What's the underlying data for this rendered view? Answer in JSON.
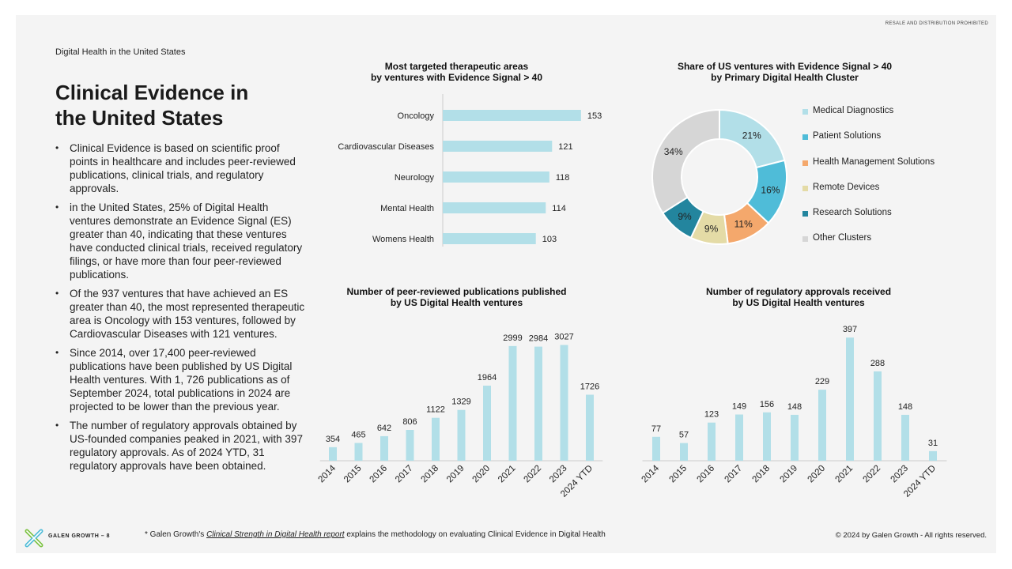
{
  "header": {
    "notice": "RESALE AND DISTRIBUTION PROHIBITED",
    "kicker": "Digital Health in the United States",
    "title_line1": "Clinical Evidence in",
    "title_line2": "the United States"
  },
  "bullets": [
    "Clinical Evidence is based on scientific proof points in healthcare and includes peer-reviewed publications, clinical trials, and regulatory approvals.",
    "in the United States, 25% of Digital Health ventures demonstrate an Evidence Signal (ES) greater than 40, indicating that these ventures have conducted clinical trials, received regulatory filings, or have more than four peer-reviewed publications.",
    "Of the 937 ventures that have achieved an ES greater than 40, the most represented therapeutic area is Oncology with 153 ventures, followed by Cardiovascular Diseases with 121 ventures.",
    "Since 2014, over 17,400 peer-reviewed publications have been published by US Digital Health ventures. With 1, 726 publications as of September 2024, total publications in 2024 are projected to be lower than the previous year.",
    "The number of regulatory approvals obtained by US-founded companies peaked in 2021, with 397 regulatory approvals. As of 2024 YTD, 31 regulatory approvals have been obtained."
  ],
  "colors": {
    "bar": "#b2dfe8",
    "slice_medical_diagnostics": "#b2dfe8",
    "slice_patient_solutions": "#4fbcd8",
    "slice_health_management": "#f4a86c",
    "slice_remote_devices": "#e4dba6",
    "slice_research_solutions": "#23859e",
    "slice_other_clusters": "#d6d6d6"
  },
  "chart_data": [
    {
      "type": "bar",
      "orientation": "horizontal",
      "title_line1": "Most targeted therapeutic areas",
      "title_line2": "by ventures with Evidence Signal > 40",
      "categories": [
        "Oncology",
        "Cardiovascular Diseases",
        "Neurology",
        "Mental Health",
        "Womens Health"
      ],
      "values": [
        153,
        121,
        118,
        114,
        103
      ],
      "xlim": [
        0,
        175
      ]
    },
    {
      "type": "pie",
      "title_line1": "Share of US ventures with Evidence Signal > 40",
      "title_line2": "by Primary Digital Health Cluster",
      "labels": [
        "Medical Diagnostics",
        "Patient Solutions",
        "Health Management Solutions",
        "Remote Devices",
        "Research Solutions",
        "Other Clusters"
      ],
      "values": [
        21,
        16,
        11,
        9,
        9,
        34
      ],
      "value_labels": [
        "21%",
        "16%",
        "11%",
        "9%",
        "9%",
        "34%"
      ],
      "legend": "right"
    },
    {
      "type": "bar",
      "title_line1": "Number of peer-reviewed publications published",
      "title_line2": "by US Digital Health ventures",
      "categories": [
        "2014",
        "2015",
        "2016",
        "2017",
        "2018",
        "2019",
        "2020",
        "2021",
        "2022",
        "2023",
        "2024 YTD"
      ],
      "values": [
        354,
        465,
        642,
        806,
        1122,
        1329,
        1964,
        2999,
        2984,
        3027,
        1726
      ],
      "ylim": [
        0,
        3100
      ]
    },
    {
      "type": "bar",
      "title_line1": "Number of regulatory approvals received",
      "title_line2": "by US Digital Health ventures",
      "categories": [
        "2014",
        "2015",
        "2016",
        "2017",
        "2018",
        "2019",
        "2020",
        "2021",
        "2022",
        "2023",
        "2024 YTD"
      ],
      "values": [
        77,
        57,
        123,
        149,
        156,
        148,
        229,
        397,
        288,
        148,
        31
      ],
      "ylim": [
        0,
        400
      ]
    }
  ],
  "footer": {
    "brand": "GALEN GROWTH – 8",
    "footnote_prefix": "* Galen Growth's ",
    "footnote_link": "Clinical Strength in Digital Health report",
    "footnote_suffix": " explains the methodology on evaluating Clinical Evidence in Digital Health",
    "copyright": "© 2024 by Galen Growth  - All rights reserved."
  }
}
